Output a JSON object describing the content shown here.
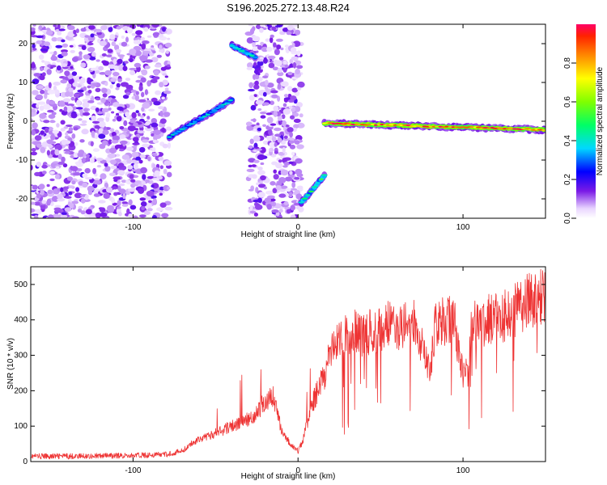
{
  "title": "S196.2025.272.13.48.R24",
  "chart_data": [
    {
      "type": "heatmap",
      "xlabel": "Height of straight line (km)",
      "ylabel": "Frequency (Hz)",
      "xlim": [
        -162,
        150
      ],
      "ylim": [
        -25,
        25
      ],
      "xticks": [
        -100,
        0,
        100
      ],
      "yticks": [
        -20,
        -10,
        0,
        10,
        20
      ],
      "xtick_labels": [
        "-100",
        "0",
        "100"
      ],
      "ytick_labels": [
        "-20",
        "-10",
        "0",
        "10",
        "20"
      ],
      "colorbar": {
        "label": "Normalized spectral amplitude",
        "range": [
          0,
          1
        ],
        "ticks": [
          0.0,
          0.2,
          0.4,
          0.6,
          0.8
        ],
        "tick_labels": [
          "0.0",
          "0.2",
          "0.4",
          "0.6",
          "0.8"
        ]
      },
      "features": [
        {
          "region": "noise",
          "x": [
            -162,
            -78
          ],
          "y": [
            -25,
            25
          ],
          "level": 0.1
        },
        {
          "region": "noise",
          "x": [
            -30,
            2
          ],
          "y": [
            -25,
            25
          ],
          "level": 0.1
        },
        {
          "region": "streak",
          "x": [
            -78,
            -40
          ],
          "y": [
            -3,
            6
          ],
          "level": 0.3
        },
        {
          "region": "streak",
          "x": [
            -40,
            -26
          ],
          "y": [
            16,
            20
          ],
          "level": 0.3
        },
        {
          "region": "streak",
          "x": [
            2,
            16
          ],
          "y": [
            -22,
            -13
          ],
          "level": 0.35
        },
        {
          "region": "streak",
          "x": [
            16,
            150
          ],
          "y": [
            -2,
            0
          ],
          "level": 0.9
        }
      ]
    },
    {
      "type": "line",
      "xlabel": "Height of straight line (km)",
      "ylabel": "SNR (10 * v/v)",
      "xlim": [
        -162,
        150
      ],
      "ylim": [
        0,
        550
      ],
      "xticks": [
        -100,
        0,
        100
      ],
      "yticks": [
        0,
        100,
        200,
        300,
        400,
        500
      ],
      "xtick_labels": [
        "-100",
        "0",
        "100"
      ],
      "ytick_labels": [
        "0",
        "100",
        "200",
        "300",
        "400",
        "500"
      ],
      "series": [
        {
          "color": "#ee3333",
          "x": [
            -162,
            -140,
            -120,
            -100,
            -80,
            -70,
            -62,
            -55,
            -50,
            -45,
            -40,
            -35,
            -30,
            -25,
            -20,
            -15,
            -10,
            -5,
            0,
            3,
            6,
            10,
            15,
            18,
            20,
            25,
            30,
            35,
            40,
            45,
            50,
            55,
            60,
            65,
            70,
            73,
            76,
            80,
            83,
            86,
            90,
            95,
            98,
            100,
            103,
            105,
            110,
            115,
            120,
            125,
            130,
            135,
            140,
            145,
            150
          ],
          "y": [
            15,
            15,
            16,
            17,
            20,
            30,
            60,
            70,
            80,
            90,
            100,
            110,
            120,
            140,
            170,
            190,
            90,
            50,
            30,
            60,
            120,
            180,
            230,
            280,
            310,
            340,
            355,
            365,
            360,
            370,
            375,
            385,
            380,
            390,
            395,
            370,
            300,
            250,
            380,
            395,
            400,
            390,
            300,
            240,
            250,
            380,
            390,
            400,
            405,
            410,
            420,
            440,
            455,
            460,
            470
          ]
        }
      ]
    }
  ]
}
